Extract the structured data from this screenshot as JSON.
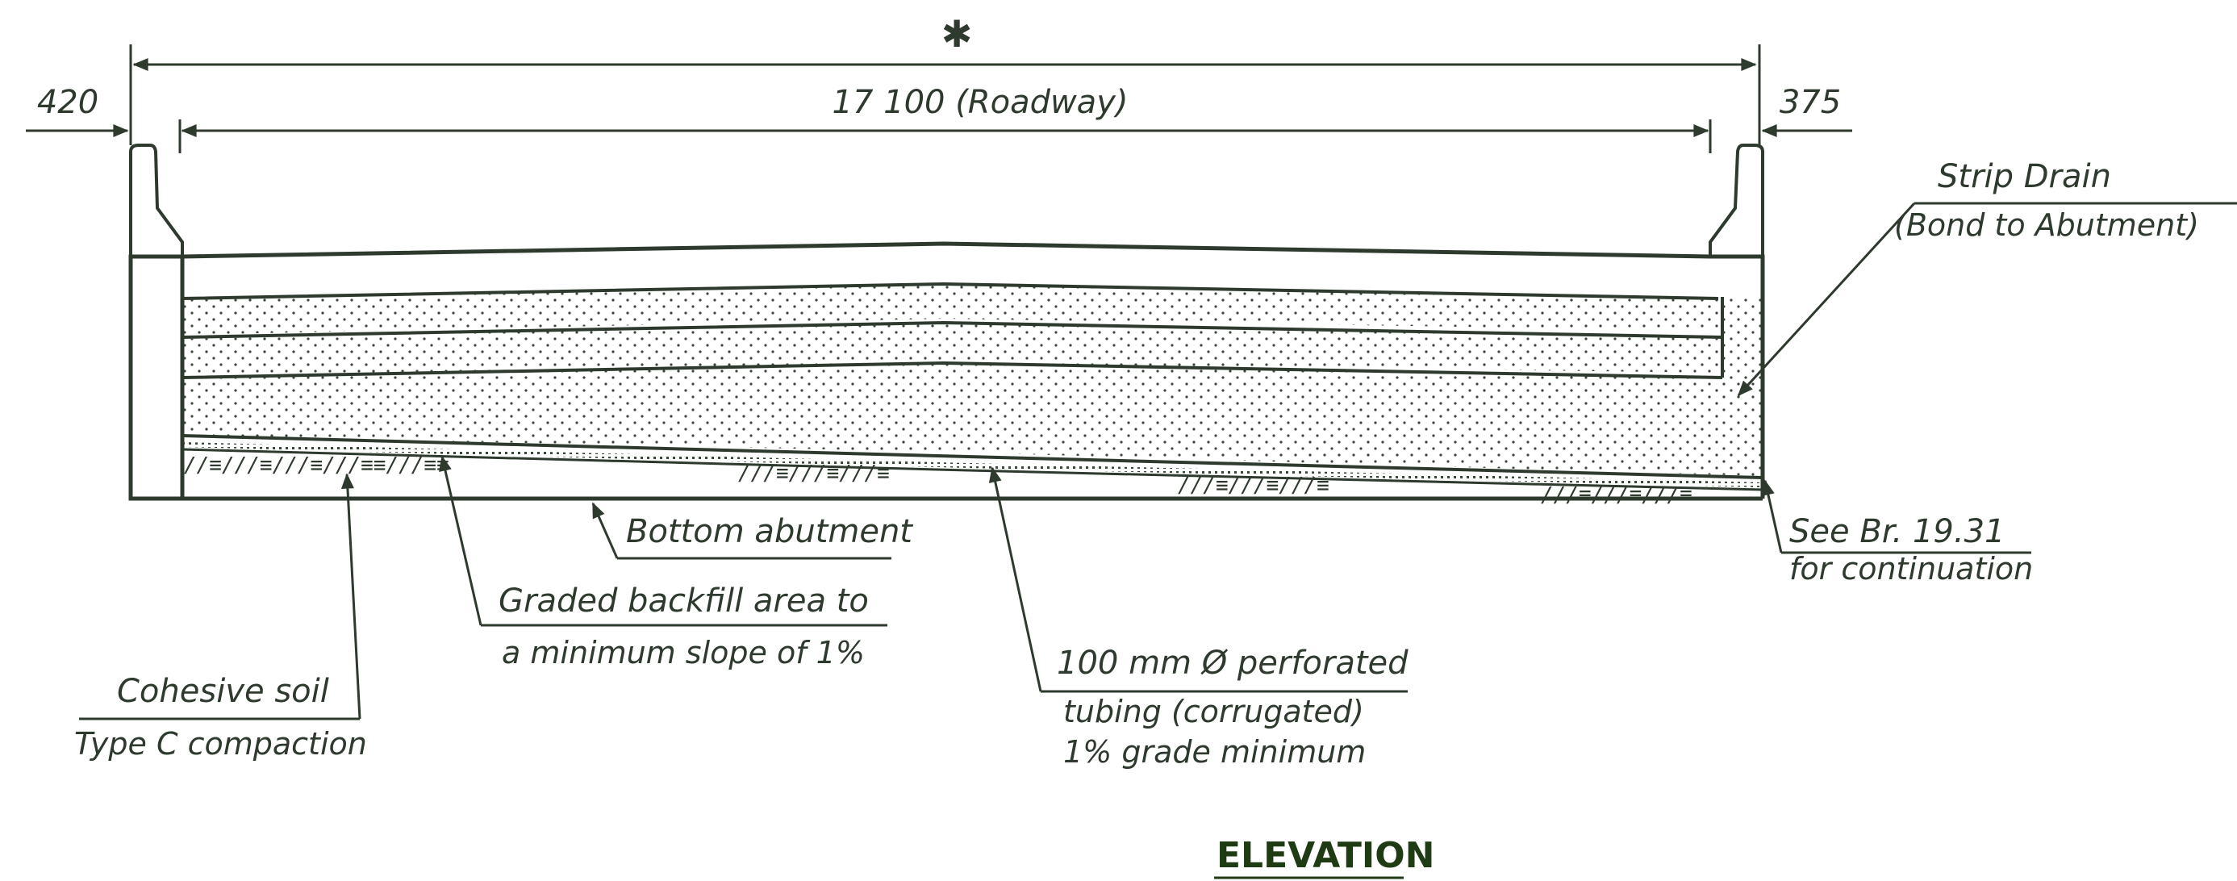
{
  "drawing": {
    "title": "ELEVATION",
    "asterisk": "✱",
    "dimensions": {
      "left_offset": "420",
      "right_offset": "375",
      "roadway": "17 100   (Roadway)"
    },
    "labels": {
      "strip_drain_line1": "Strip Drain",
      "strip_drain_line2": "(Bond to Abutment)",
      "see_br_line1": "See Br. 19.31",
      "see_br_line2": "for continuation",
      "bottom_abutment": "Bottom  abutment",
      "graded_line1": "Graded  backfill area to",
      "graded_line2": "a  minimum  slope of 1%",
      "tubing_line1": "100  mm  Ø  perforated",
      "tubing_line2": "tubing (corrugated)",
      "tubing_line3": "1%  grade minimum",
      "cohesive_line1": "Cohesive soil",
      "cohesive_line2": "Type C  compaction"
    },
    "colors": {
      "line": "#2f3a2f",
      "title": "#1e3b14",
      "background": "#ffffff"
    }
  }
}
